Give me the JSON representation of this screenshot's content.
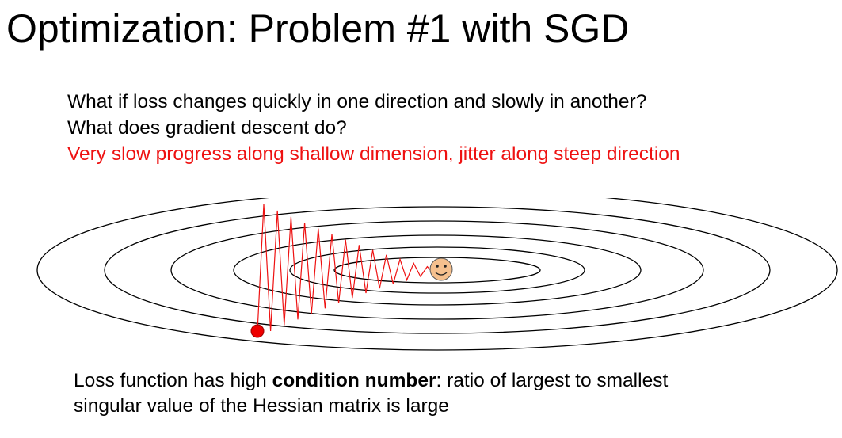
{
  "slide": {
    "title": "Optimization: Problem #1 with SGD",
    "questions": [
      "What if loss changes quickly in one direction and slowly in another?",
      "What does gradient descent do?"
    ],
    "answer": "Very slow progress along shallow dimension, jitter along steep direction",
    "footer": {
      "line1_before": "Loss function has high ",
      "line1_bold": "condition number",
      "line1_after": ": ratio of largest to smallest",
      "line2": "singular value of the Hessian matrix is large"
    }
  },
  "diagram": {
    "contour_count": 5,
    "contour_color": "#000000",
    "path_color": "#ee1111",
    "start_marker_color": "#ee0000",
    "goal_face_color": "#f5c08e",
    "goal_icon": "smiley-face-icon"
  }
}
